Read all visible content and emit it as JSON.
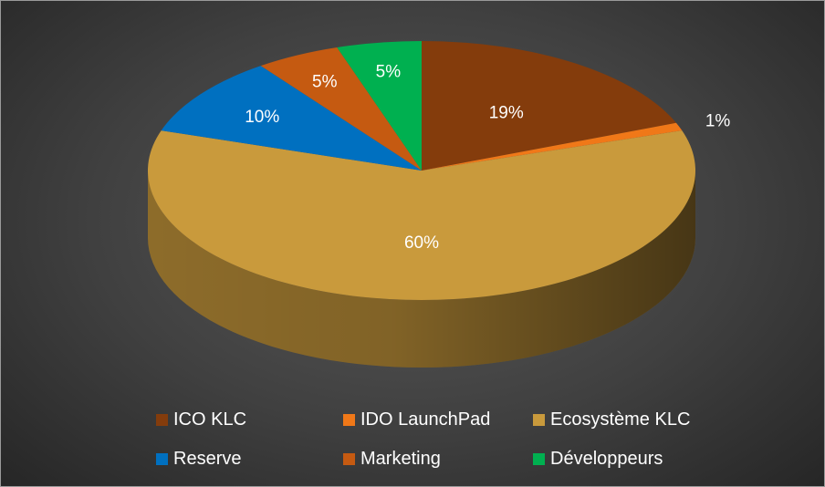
{
  "chart_data": {
    "type": "pie",
    "categories": [
      "ICO KLC",
      "IDO LaunchPad",
      "Ecosystème KLC",
      "Reserve",
      "Marketing",
      "Développeurs"
    ],
    "values": [
      19,
      1,
      60,
      10,
      5,
      5
    ],
    "labels": [
      "19%",
      "1%",
      "60%",
      "10%",
      "5%",
      "5%"
    ],
    "colors": [
      "#843C0C",
      "#F07818",
      "#C99A3C",
      "#0070C0",
      "#C55A11",
      "#00B050"
    ],
    "title": "",
    "legend_position": "bottom",
    "style": "3d"
  }
}
